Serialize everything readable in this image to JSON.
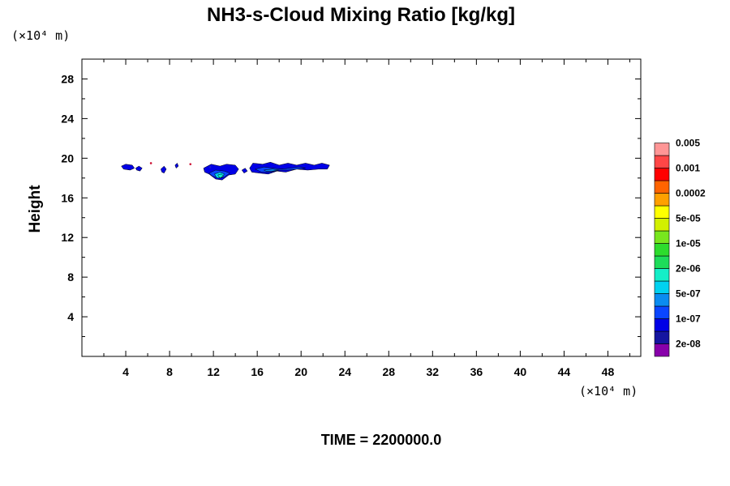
{
  "chart_data": {
    "type": "contour",
    "title": "NH3-s-Cloud Mixing Ratio [kg/kg]",
    "ylabel": "Height",
    "x_unit": "(×10⁴ m)",
    "y_unit": "(×10⁴ m)",
    "xlim": [
      0,
      51
    ],
    "ylim": [
      0,
      30
    ],
    "x_ticks": [
      4,
      8,
      12,
      16,
      20,
      24,
      28,
      32,
      36,
      40,
      44,
      48
    ],
    "y_ticks": [
      4,
      8,
      12,
      16,
      20,
      24,
      28
    ],
    "x_tick_labels": [
      "4",
      "8",
      "12",
      "16",
      "20",
      "24",
      "28",
      "32",
      "36",
      "40",
      "44",
      "48"
    ],
    "y_tick_labels": [
      "4",
      "8",
      "12",
      "16",
      "20",
      "24",
      "28"
    ],
    "colorbar": {
      "colors": [
        "#8800aa",
        "#1515a0",
        "#0000e6",
        "#0a46ff",
        "#0a8cf0",
        "#00d2f0",
        "#14eec8",
        "#1edc5a",
        "#2ddc2d",
        "#78e61e",
        "#d2f000",
        "#ffff00",
        "#ffa000",
        "#ff6400",
        "#ff0000",
        "#ff4646",
        "#ff9696"
      ],
      "labels": [
        "2e-08",
        "1e-07",
        "5e-07",
        "2e-06",
        "1e-05",
        "5e-05",
        "0.0002",
        "0.001",
        "0.005"
      ]
    },
    "regions": [
      {
        "level": 2,
        "points": [
          [
            3.6,
            19.2
          ],
          [
            4.0,
            19.4
          ],
          [
            4.6,
            19.3
          ],
          [
            4.8,
            19.0
          ],
          [
            4.4,
            18.8
          ],
          [
            3.8,
            18.9
          ]
        ]
      },
      {
        "level": 2,
        "points": [
          [
            4.9,
            19.0
          ],
          [
            5.2,
            19.2
          ],
          [
            5.5,
            19.0
          ],
          [
            5.3,
            18.7
          ],
          [
            5.0,
            18.8
          ]
        ]
      },
      {
        "level": 2,
        "points": [
          [
            7.2,
            18.9
          ],
          [
            7.5,
            19.2
          ],
          [
            7.7,
            18.9
          ],
          [
            7.5,
            18.5
          ],
          [
            7.3,
            18.6
          ]
        ]
      },
      {
        "level": 2,
        "points": [
          [
            8.5,
            19.3
          ],
          [
            8.7,
            19.5
          ],
          [
            8.8,
            19.2
          ],
          [
            8.6,
            19.0
          ]
        ]
      },
      {
        "level": 2,
        "points": [
          [
            11.1,
            19.0
          ],
          [
            11.8,
            19.4
          ],
          [
            12.6,
            19.2
          ],
          [
            13.2,
            19.4
          ],
          [
            14.0,
            19.3
          ],
          [
            14.3,
            18.9
          ],
          [
            14.0,
            18.4
          ],
          [
            13.4,
            18.3
          ],
          [
            12.8,
            17.8
          ],
          [
            12.2,
            17.9
          ],
          [
            11.6,
            18.4
          ],
          [
            11.2,
            18.6
          ]
        ]
      },
      {
        "level": 3,
        "points": [
          [
            11.6,
            18.5
          ],
          [
            12.2,
            18.8
          ],
          [
            13.0,
            18.7
          ],
          [
            13.5,
            18.5
          ],
          [
            13.0,
            18.1
          ],
          [
            12.4,
            18.0
          ],
          [
            11.9,
            18.2
          ]
        ]
      },
      {
        "level": 5,
        "points": [
          [
            12.1,
            18.4
          ],
          [
            12.6,
            18.6
          ],
          [
            13.0,
            18.4
          ],
          [
            12.7,
            18.0
          ],
          [
            12.3,
            18.0
          ]
        ]
      },
      {
        "level": 6,
        "points": [
          [
            12.4,
            18.3
          ],
          [
            12.7,
            18.4
          ],
          [
            12.9,
            18.2
          ],
          [
            12.6,
            18.0
          ]
        ]
      },
      {
        "level": 2,
        "points": [
          [
            14.6,
            18.8
          ],
          [
            14.9,
            19.0
          ],
          [
            15.1,
            18.7
          ],
          [
            14.8,
            18.5
          ]
        ]
      },
      {
        "level": 2,
        "points": [
          [
            15.3,
            19.0
          ],
          [
            15.6,
            19.5
          ],
          [
            16.5,
            19.4
          ],
          [
            17.2,
            19.6
          ],
          [
            18.0,
            19.3
          ],
          [
            18.8,
            19.5
          ],
          [
            19.6,
            19.3
          ],
          [
            20.4,
            19.5
          ],
          [
            21.2,
            19.3
          ],
          [
            21.9,
            19.5
          ],
          [
            22.6,
            19.3
          ],
          [
            22.4,
            18.9
          ],
          [
            21.6,
            18.9
          ],
          [
            20.6,
            18.8
          ],
          [
            19.6,
            18.9
          ],
          [
            18.6,
            18.6
          ],
          [
            17.8,
            18.7
          ],
          [
            17.0,
            18.4
          ],
          [
            16.2,
            18.5
          ],
          [
            15.5,
            18.6
          ]
        ]
      },
      {
        "level": 3,
        "points": [
          [
            15.8,
            18.9
          ],
          [
            16.6,
            19.1
          ],
          [
            17.4,
            19.0
          ],
          [
            18.2,
            18.9
          ],
          [
            19.0,
            19.0
          ],
          [
            19.8,
            19.1
          ],
          [
            20.4,
            19.0
          ],
          [
            19.6,
            18.9
          ],
          [
            18.8,
            18.8
          ],
          [
            18.0,
            18.8
          ],
          [
            17.2,
            18.6
          ],
          [
            16.4,
            18.6
          ]
        ]
      },
      {
        "level": 4,
        "points": [
          [
            16.6,
            18.8
          ],
          [
            17.4,
            18.9
          ],
          [
            18.0,
            18.8
          ],
          [
            17.4,
            18.7
          ],
          [
            16.8,
            18.7
          ]
        ]
      }
    ],
    "dots": [
      {
        "x": 6.3,
        "y": 19.5,
        "color": "#cc1133"
      },
      {
        "x": 9.9,
        "y": 19.4,
        "color": "#cc1133"
      },
      {
        "x": 11.7,
        "y": 19.1,
        "color": "#1a1ad0"
      }
    ]
  },
  "footer": {
    "time_label": "TIME = 2200000.0"
  }
}
